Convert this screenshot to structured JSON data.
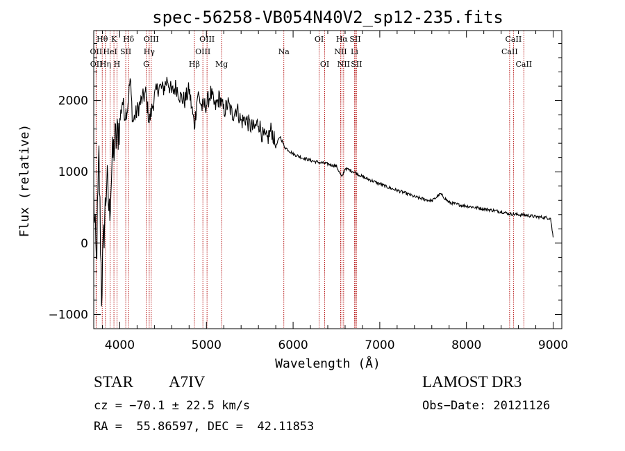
{
  "chart_data": {
    "type": "line",
    "title": "spec-56258-VB054N40V2_sp12-235.fits",
    "xlabel": "Wavelength (Å)",
    "ylabel": "Flux (relative)",
    "xlim": [
      3700,
      9100
    ],
    "ylim": [
      -1200,
      2980
    ],
    "xticks": [
      4000,
      5000,
      6000,
      7000,
      8000,
      9000
    ],
    "yticks": [
      -1000,
      0,
      1000,
      2000
    ],
    "grid": false,
    "series": [
      {
        "name": "flux",
        "x": [
          3700,
          3730,
          3760,
          3790,
          3820,
          3850,
          3880,
          3910,
          3940,
          3970,
          4000,
          4030,
          4060,
          4090,
          4120,
          4150,
          4200,
          4250,
          4300,
          4340,
          4400,
          4450,
          4500,
          4550,
          4600,
          4650,
          4700,
          4750,
          4800,
          4861,
          4900,
          4950,
          5000,
          5050,
          5100,
          5150,
          5200,
          5250,
          5300,
          5350,
          5400,
          5450,
          5500,
          5550,
          5600,
          5650,
          5700,
          5750,
          5800,
          5850,
          5900,
          5950,
          6000,
          6100,
          6200,
          6300,
          6400,
          6500,
          6563,
          6600,
          6700,
          6800,
          6900,
          7000,
          7100,
          7200,
          7300,
          7400,
          7500,
          7600,
          7700,
          7800,
          7900,
          8000,
          8100,
          8200,
          8300,
          8400,
          8500,
          8600,
          8700,
          8800,
          8900,
          8970,
          9000
        ],
        "y": [
          600,
          -300,
          1200,
          -700,
          200,
          900,
          400,
          1100,
          1400,
          1500,
          1700,
          2000,
          1800,
          1900,
          2300,
          1700,
          1850,
          2000,
          2100,
          1700,
          2050,
          2200,
          2150,
          2300,
          2100,
          2200,
          2050,
          2000,
          2150,
          1650,
          2100,
          1900,
          1950,
          2100,
          1900,
          2050,
          1850,
          1950,
          1800,
          1900,
          1700,
          1750,
          1650,
          1600,
          1700,
          1500,
          1450,
          1600,
          1350,
          1500,
          1350,
          1300,
          1250,
          1200,
          1160,
          1130,
          1110,
          1080,
          920,
          1050,
          1000,
          930,
          880,
          830,
          780,
          740,
          700,
          650,
          620,
          590,
          690,
          570,
          540,
          520,
          500,
          480,
          460,
          440,
          410,
          400,
          390,
          370,
          360,
          350,
          80
        ]
      }
    ],
    "lines": [
      {
        "label": "Hθ",
        "x": 3798,
        "row": 0
      },
      {
        "label": "K",
        "x": 3933,
        "row": 0
      },
      {
        "label": "Hδ",
        "x": 4102,
        "row": 0
      },
      {
        "label": "OII",
        "x": 3727,
        "row": 1
      },
      {
        "label": "HeI",
        "x": 3889,
        "row": 1
      },
      {
        "label": "SII",
        "x": 4069,
        "row": 1
      },
      {
        "label": "OII",
        "x": 3729,
        "row": 2
      },
      {
        "label": "Hη",
        "x": 3835,
        "row": 2
      },
      {
        "label": "H",
        "x": 3968,
        "row": 2
      },
      {
        "label": "OIII",
        "x": 4363,
        "row": 0
      },
      {
        "label": "Hγ",
        "x": 4340,
        "row": 1
      },
      {
        "label": "G",
        "x": 4305,
        "row": 2
      },
      {
        "label": "OIII",
        "x": 5007,
        "row": 0
      },
      {
        "label": "OIII",
        "x": 4959,
        "row": 1
      },
      {
        "label": "Hβ",
        "x": 4861,
        "row": 2
      },
      {
        "label": "Mg",
        "x": 5175,
        "row": 2
      },
      {
        "label": "Na",
        "x": 5893,
        "row": 1
      },
      {
        "label": "OI",
        "x": 6300,
        "row": 0
      },
      {
        "label": "OI",
        "x": 6364,
        "row": 2
      },
      {
        "label": "Hα",
        "x": 6563,
        "row": 0
      },
      {
        "label": "SII",
        "x": 6716,
        "row": 0
      },
      {
        "label": "NII",
        "x": 6548,
        "row": 1
      },
      {
        "label": "Li",
        "x": 6708,
        "row": 1
      },
      {
        "label": "NII",
        "x": 6583,
        "row": 2
      },
      {
        "label": "SII",
        "x": 6731,
        "row": 2
      },
      {
        "label": "CaII",
        "x": 8542,
        "row": 0
      },
      {
        "label": "CaII",
        "x": 8498,
        "row": 1
      },
      {
        "label": "CaII",
        "x": 8662,
        "row": 2
      }
    ]
  },
  "info": {
    "object_type": "STAR",
    "subclass": "A7IV",
    "survey": "LAMOST DR3",
    "cz": "cz = −70.1 ± 22.5 km/s",
    "obs_date": "Obs−Date: 20121126",
    "coords": "RA =  55.86597, DEC =  42.11853"
  },
  "colors": {
    "spectrum": "#000000",
    "line_marker": "#b00000",
    "axis": "#000000",
    "background": "#ffffff"
  }
}
